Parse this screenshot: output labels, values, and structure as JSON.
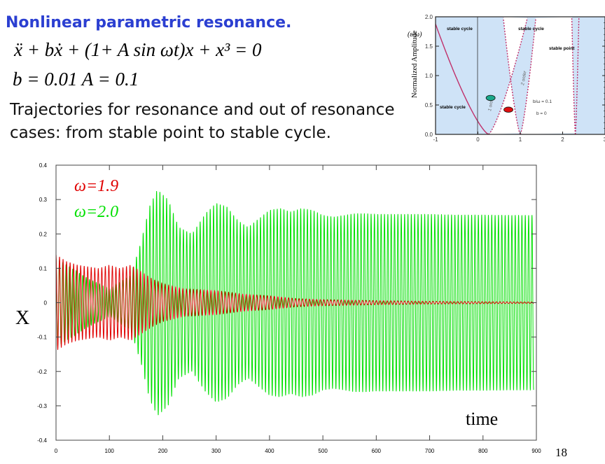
{
  "slide": {
    "title": "Nonlinear parametric  resonance.",
    "equation": "ẍ + bẋ + (1+ A sin ωt)x + x³ = 0",
    "parameters": "b = 0.01    A = 0.1",
    "description_line1": "Trajectories for resonance and out of resonance",
    "description_line2": "cases: from stable point to stable cycle.",
    "page_number": "18"
  },
  "chart_data": [
    {
      "type": "line",
      "title": "",
      "xlabel": "time",
      "ylabel": "X",
      "xlim": [
        0,
        900
      ],
      "ylim": [
        -0.4,
        0.4
      ],
      "x_ticks": [
        "0",
        "100",
        "200",
        "300",
        "400",
        "500",
        "600",
        "700",
        "800",
        "900"
      ],
      "y_ticks": [
        "-0.4",
        "-0.3",
        "-0.2",
        "-0.1",
        "0",
        "0.1",
        "0.2",
        "0.3",
        "0.4"
      ],
      "grid": false,
      "legend_position": "top-left",
      "series": [
        {
          "name": "ω=2.0",
          "color": "#00e000",
          "kind": "oscillation-envelope",
          "envelope": {
            "t": [
              0,
              30,
              60,
              100,
              140,
              160,
              175,
              190,
              210,
              230,
              255,
              280,
              300,
              320,
              340,
              360,
              380,
              400,
              420,
              440,
              460,
              480,
              500,
              520,
              540,
              560,
              580,
              600,
              650,
              700,
              750,
              800,
              850,
              895
            ],
            "amplitude": [
              0.13,
              0.1,
              0.07,
              0.04,
              0.08,
              0.18,
              0.28,
              0.33,
              0.3,
              0.22,
              0.2,
              0.26,
              0.29,
              0.28,
              0.24,
              0.22,
              0.245,
              0.27,
              0.275,
              0.265,
              0.275,
              0.27,
              0.255,
              0.25,
              0.255,
              0.26,
              0.26,
              0.258,
              0.258,
              0.258,
              0.256,
              0.256,
              0.255,
              0.255
            ]
          }
        },
        {
          "name": "ω=1.9",
          "color": "#e00000",
          "kind": "oscillation-envelope",
          "envelope": {
            "t": [
              0,
              20,
              40,
              60,
              80,
              100,
              120,
              140,
              160,
              180,
              200,
              240,
              300,
              350,
              400,
              450,
              500,
              600,
              700,
              800,
              895
            ],
            "amplitude": [
              0.14,
              0.12,
              0.11,
              0.105,
              0.1,
              0.11,
              0.1,
              0.11,
              0.09,
              0.07,
              0.055,
              0.04,
              0.035,
              0.025,
              0.02,
              0.012,
              0.009,
              0.006,
              0.004,
              0.003,
              0.002
            ]
          }
        }
      ],
      "annotations": [
        "time"
      ]
    },
    {
      "type": "line",
      "title": "",
      "xlabel": "",
      "ylabel": "Normalized Amplitude",
      "ylabel_unit": "(ε/ω)",
      "xlim": [
        -1,
        3
      ],
      "ylim": [
        0.0,
        2.0
      ],
      "x_ticks": [
        "-1",
        "0",
        "1",
        "2",
        "3"
      ],
      "y_ticks": [
        "0.0",
        "0.5",
        "1.0",
        "1.5",
        "2.0"
      ],
      "region_labels": [
        "stable cycle",
        "stable cycle",
        "stable point",
        "stable cycle",
        "1 order",
        "2 order"
      ],
      "legend_labels": [
        "b/ω = 0.1",
        "b = 0"
      ],
      "markers": [
        {
          "name": "teal-dot",
          "color": "#1aa88a",
          "x": 0.3,
          "y": 0.62
        },
        {
          "name": "red-dot",
          "color": "#e01010",
          "x": 0.72,
          "y": 0.42
        }
      ]
    }
  ]
}
